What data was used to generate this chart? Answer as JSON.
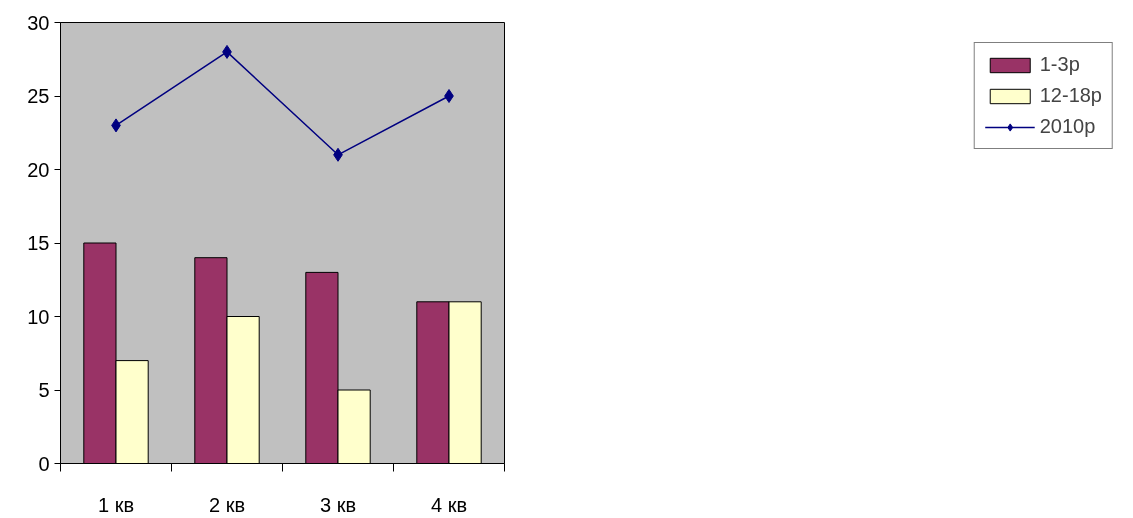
{
  "chart_data": {
    "type": "bar",
    "categories": [
      "1 кв",
      "2 кв",
      "3 кв",
      "4 кв"
    ],
    "series": [
      {
        "name": "1-3р",
        "color": "#993366",
        "values": [
          15,
          14,
          13,
          11
        ]
      },
      {
        "name": "12-18р",
        "color": "#ffffcc",
        "values": [
          7,
          10,
          5,
          11
        ]
      },
      {
        "name": "2010р",
        "color": "#000080",
        "type": "line",
        "marker": "diamond",
        "values": [
          23,
          28,
          21,
          25
        ]
      }
    ],
    "ylim": [
      0,
      30
    ],
    "yticks": [
      0,
      5,
      10,
      15,
      20,
      25,
      30
    ],
    "grid": false,
    "legend": "right"
  }
}
